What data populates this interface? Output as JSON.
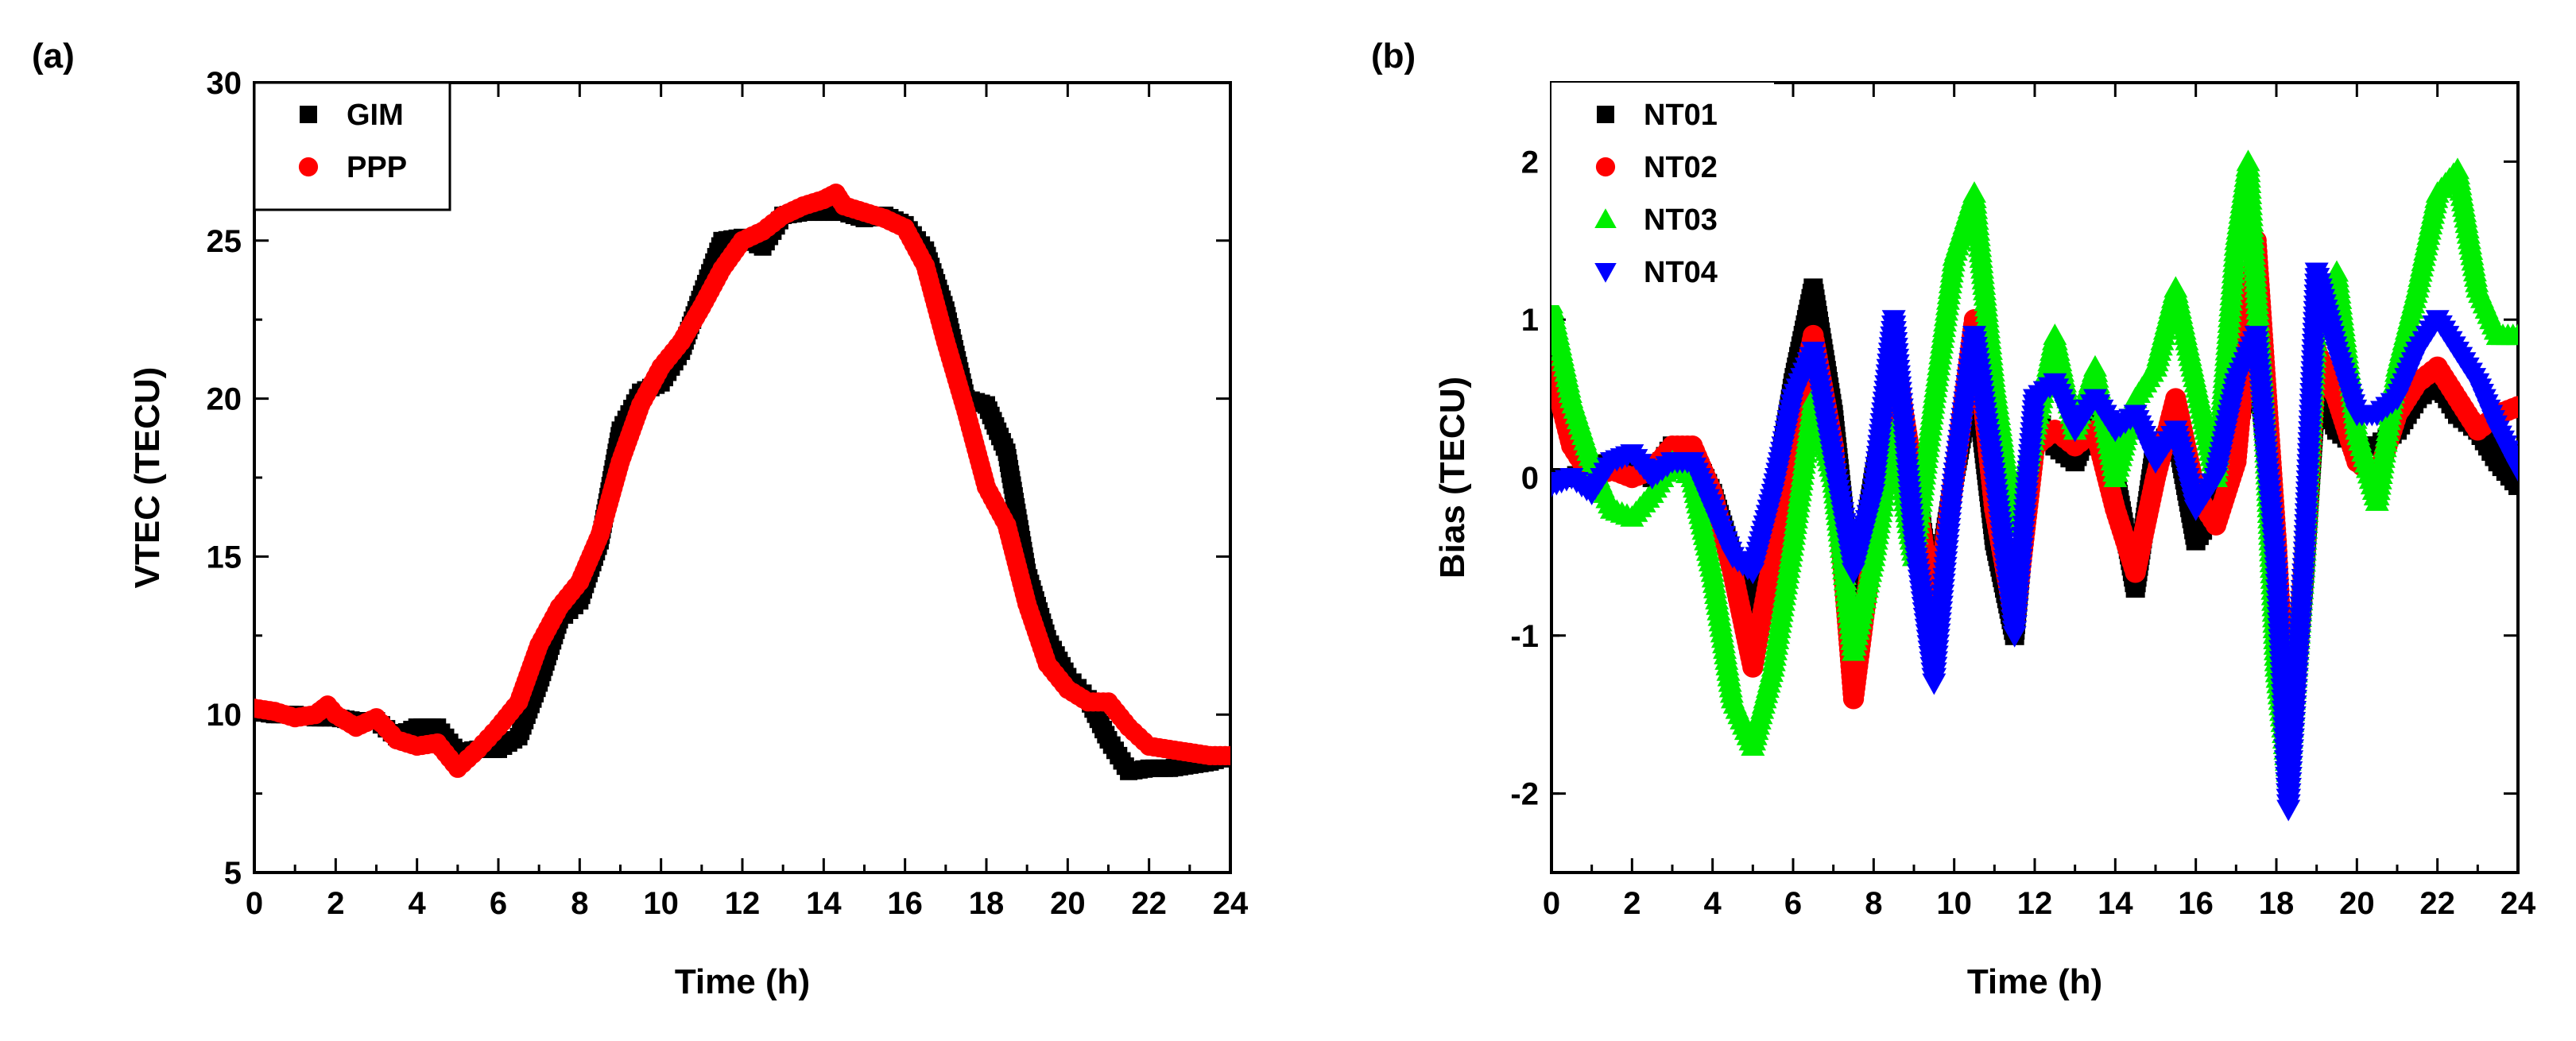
{
  "chart_data": [
    {
      "panel_label": "(a)",
      "type": "scatter",
      "xlabel": "Time (h)",
      "ylabel": "VTEC (TECU)",
      "xlim": [
        0,
        24
      ],
      "ylim": [
        5,
        30
      ],
      "xticks": [
        "0",
        "2",
        "4",
        "6",
        "8",
        "10",
        "12",
        "14",
        "16",
        "18",
        "20",
        "22",
        "24"
      ],
      "yticks": [
        "5",
        "10",
        "15",
        "20",
        "25",
        "30"
      ],
      "legend_position": "top-left",
      "series": [
        {
          "name": "GIM",
          "marker": "square",
          "color": "#000000",
          "x": [
            0,
            0.5,
            1,
            1.5,
            2,
            2.5,
            3,
            3.5,
            4,
            4.5,
            5,
            5.5,
            6,
            6.5,
            7,
            7.5,
            8,
            8.5,
            9,
            9.5,
            10,
            10.5,
            11,
            11.5,
            12,
            12.5,
            13,
            13.5,
            14,
            14.5,
            15,
            15.5,
            16,
            16.5,
            17,
            17.5,
            18,
            18.5,
            19,
            19.5,
            20,
            20.5,
            21,
            21.5,
            22,
            22.5,
            23,
            23.5,
            24
          ],
          "values": [
            10.1,
            10.0,
            10.0,
            9.9,
            9.9,
            9.8,
            9.8,
            9.3,
            9.6,
            9.6,
            8.8,
            8.9,
            8.9,
            9.3,
            11,
            13,
            13.6,
            15.5,
            19,
            20.2,
            20.5,
            21.5,
            23.3,
            25,
            25.1,
            24.8,
            25.8,
            25.9,
            25.9,
            25.9,
            25.7,
            25.8,
            25.5,
            24.7,
            22.8,
            20,
            19.8,
            18.3,
            14.5,
            12.4,
            11.2,
            10.5,
            9.2,
            8.2,
            8.3,
            8.3,
            8.4,
            8.5,
            8.7
          ]
        },
        {
          "name": "PPP",
          "marker": "circle",
          "color": "#ff0000",
          "x": [
            0,
            0.5,
            1,
            1.5,
            1.8,
            2,
            2.5,
            3,
            3.5,
            4,
            4.5,
            5,
            5.5,
            6,
            6.5,
            7,
            7.5,
            8,
            8.5,
            9,
            9.5,
            10,
            10.5,
            11,
            11.5,
            12,
            12.5,
            13,
            13.5,
            14,
            14.3,
            14.5,
            15,
            15.5,
            16,
            16.5,
            17,
            17.5,
            18,
            18.5,
            19,
            19.5,
            20,
            20.5,
            21,
            21.5,
            22,
            22.5,
            23,
            23.5,
            24
          ],
          "values": [
            10.2,
            10.1,
            9.9,
            10.0,
            10.3,
            10.0,
            9.6,
            9.9,
            9.2,
            9.0,
            9.1,
            8.3,
            8.9,
            9.6,
            10.4,
            12.2,
            13.4,
            14.2,
            15.7,
            18,
            19.8,
            21,
            21.8,
            22.9,
            24.1,
            25,
            25.3,
            25.8,
            26.1,
            26.3,
            26.5,
            26.1,
            25.9,
            25.7,
            25.4,
            24.2,
            21.8,
            19.6,
            17.2,
            16,
            13.5,
            11.6,
            10.8,
            10.4,
            10.4,
            9.6,
            9.0,
            8.9,
            8.8,
            8.7,
            8.7
          ]
        }
      ]
    },
    {
      "panel_label": "(b)",
      "type": "scatter",
      "xlabel": "Time (h)",
      "ylabel": "Bias (TECU)",
      "xlim": [
        0,
        24
      ],
      "ylim": [
        -2.5,
        2.5
      ],
      "xticks": [
        "0",
        "2",
        "4",
        "6",
        "8",
        "10",
        "12",
        "14",
        "16",
        "18",
        "20",
        "22",
        "24"
      ],
      "yticks": [
        "-2",
        "-1",
        "0",
        "1",
        "2"
      ],
      "legend_position": "top-left",
      "series": [
        {
          "name": "NT01",
          "marker": "square",
          "color": "#000000",
          "x": [
            0,
            0.5,
            1,
            1.5,
            2,
            2.5,
            3,
            3.5,
            4,
            4.5,
            5,
            5.5,
            6,
            6.5,
            7,
            7.5,
            8,
            8.5,
            9,
            9.5,
            10,
            10.5,
            11,
            11.5,
            12,
            12.5,
            13,
            13.5,
            14,
            14.5,
            15,
            15.5,
            16,
            16.5,
            17,
            17.5,
            18,
            18.3,
            18.7,
            19,
            19.5,
            20,
            20.5,
            21,
            21.5,
            22,
            22.5,
            23,
            23.5,
            24
          ],
          "values": [
            0.0,
            0.0,
            0.05,
            0.1,
            0.1,
            0.0,
            0.2,
            0.15,
            -0.1,
            -0.5,
            -0.8,
            -0.2,
            0.6,
            1.2,
            0.4,
            -0.8,
            0.0,
            0.7,
            0.0,
            -0.8,
            0.0,
            0.7,
            -0.4,
            -1.0,
            0.4,
            0.2,
            0.1,
            0.4,
            0.0,
            -0.7,
            0.2,
            0.3,
            -0.4,
            -0.2,
            0.3,
            0.8,
            -0.5,
            -1.9,
            -0.6,
            0.6,
            0.3,
            0.2,
            0.2,
            0.3,
            0.5,
            0.6,
            0.4,
            0.3,
            0.1,
            -0.05
          ]
        },
        {
          "name": "NT02",
          "marker": "circle",
          "color": "#ff0000",
          "x": [
            0,
            0.5,
            1,
            1.5,
            2,
            2.5,
            3,
            3.5,
            4,
            4.5,
            5,
            5.5,
            6,
            6.5,
            7,
            7.5,
            8,
            8.5,
            9,
            9.5,
            10,
            10.5,
            11,
            11.5,
            12,
            12.5,
            13,
            13.5,
            14,
            14.5,
            15,
            15.5,
            16,
            16.5,
            17,
            17.5,
            18,
            18.3,
            18.7,
            19,
            19.5,
            20,
            20.5,
            21,
            21.5,
            22,
            22.5,
            23,
            23.5,
            24
          ],
          "values": [
            0.7,
            0.2,
            0.0,
            0.05,
            0.0,
            0.05,
            0.2,
            0.2,
            -0.1,
            -0.6,
            -1.2,
            -0.5,
            0.3,
            0.9,
            0.2,
            -1.4,
            -0.4,
            0.8,
            0.0,
            -0.9,
            0.0,
            1.0,
            -0.2,
            -0.9,
            0.2,
            0.3,
            0.2,
            0.3,
            -0.2,
            -0.6,
            0.0,
            0.5,
            -0.1,
            -0.3,
            0.1,
            1.5,
            -0.4,
            -1.9,
            -0.5,
            0.8,
            0.5,
            0.1,
            0.0,
            0.4,
            0.6,
            0.7,
            0.5,
            0.3,
            0.4,
            0.45
          ]
        },
        {
          "name": "NT03",
          "marker": "triangle-up",
          "color": "#00ee00",
          "x": [
            0,
            0.5,
            1,
            1.5,
            2,
            2.5,
            3,
            3.5,
            4,
            4.5,
            5,
            5.5,
            6,
            6.5,
            7,
            7.5,
            8,
            8.5,
            9,
            9.5,
            10,
            10.5,
            11,
            11.5,
            12,
            12.5,
            13,
            13.5,
            14,
            14.5,
            15,
            15.5,
            16,
            16.5,
            17,
            17.3,
            17.7,
            18,
            18.3,
            18.7,
            19,
            19.5,
            20,
            20.5,
            21,
            21.5,
            22,
            22.5,
            23,
            23.5,
            24
          ],
          "values": [
            1.1,
            0.5,
            0.1,
            -0.2,
            -0.25,
            -0.1,
            0.1,
            0.0,
            -0.6,
            -1.4,
            -1.7,
            -1.2,
            -0.4,
            0.5,
            0.0,
            -1.1,
            -0.5,
            0.3,
            -0.5,
            0.5,
            1.4,
            1.8,
            0.6,
            -0.3,
            0.3,
            0.9,
            0.3,
            0.7,
            0.0,
            0.5,
            0.7,
            1.2,
            0.6,
            0.0,
            1.5,
            2.0,
            0.4,
            -1.2,
            -1.9,
            -0.5,
            1.0,
            1.3,
            0.3,
            -0.15,
            0.7,
            1.2,
            1.8,
            1.95,
            1.2,
            0.9,
            0.9
          ]
        },
        {
          "name": "NT04",
          "marker": "triangle-down",
          "color": "#0000ff",
          "x": [
            0,
            0.5,
            1,
            1.5,
            2,
            2.5,
            3,
            3.5,
            4,
            4.5,
            5,
            5.5,
            6,
            6.5,
            7,
            7.5,
            8,
            8.5,
            9,
            9.5,
            10,
            10.5,
            11,
            11.5,
            12,
            12.5,
            13,
            13.5,
            14,
            14.5,
            15,
            15.5,
            16,
            16.5,
            17,
            17.5,
            18,
            18.3,
            18.7,
            19,
            19.5,
            20,
            20.5,
            21,
            21.5,
            22,
            22.5,
            23,
            23.5,
            24
          ],
          "values": [
            -0.05,
            0.0,
            -0.1,
            0.1,
            0.15,
            0.0,
            0.1,
            0.1,
            -0.2,
            -0.5,
            -0.6,
            -0.1,
            0.5,
            0.8,
            0.1,
            -0.6,
            -0.1,
            1.0,
            -0.4,
            -1.3,
            0.0,
            0.9,
            0.0,
            -1.0,
            0.5,
            0.6,
            0.3,
            0.5,
            0.3,
            0.4,
            0.1,
            0.3,
            -0.2,
            0.0,
            0.6,
            0.9,
            -0.6,
            -2.1,
            -0.5,
            1.3,
            0.8,
            0.4,
            0.4,
            0.5,
            0.8,
            1.0,
            0.8,
            0.6,
            0.3,
            0.05
          ]
        }
      ]
    }
  ]
}
